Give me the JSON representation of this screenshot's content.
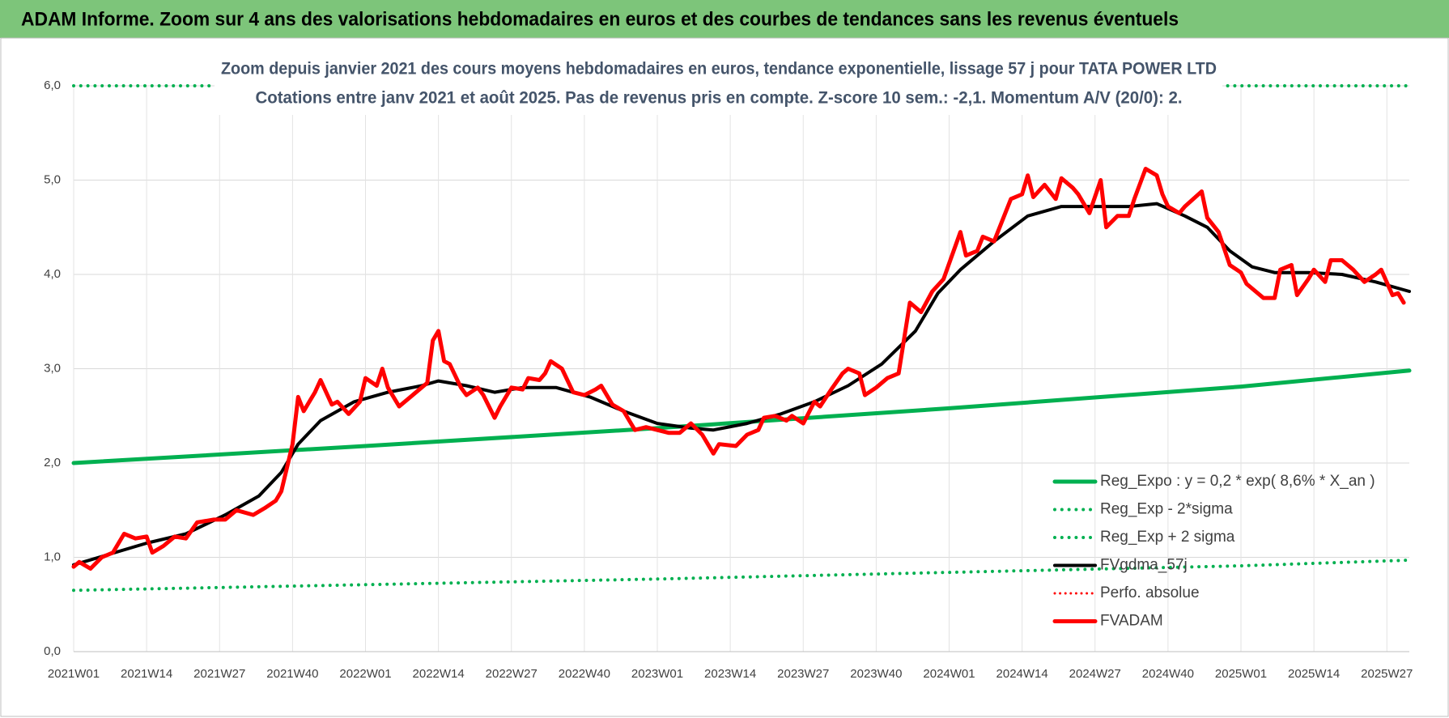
{
  "chart_data": {
    "type": "line",
    "title": "ADAM Informe. Zoom sur 4 ans des valorisations hebdomadaires en euros et des courbes de tendances sans les revenus éventuels",
    "subtitle": [
      "Zoom depuis janvier 2021 des cours moyens hebdomadaires en euros, tendance exponentielle, lissage 57 j pour TATA POWER LTD",
      "Cotations entre janv 2021 et août 2025.  Pas de revenus pris en compte. Z-score 10 sem.: -2,1. Momentum A/V (20/0): 2."
    ],
    "xlim": [
      0,
      238
    ],
    "xticks": [
      {
        "value": 0,
        "label": "2021W01"
      },
      {
        "value": 13,
        "label": "2021W14"
      },
      {
        "value": 26,
        "label": "2021W27"
      },
      {
        "value": 39,
        "label": "2021W40"
      },
      {
        "value": 52,
        "label": "2022W01"
      },
      {
        "value": 65,
        "label": "2022W14"
      },
      {
        "value": 78,
        "label": "2022W27"
      },
      {
        "value": 91,
        "label": "2022W40"
      },
      {
        "value": 104,
        "label": "2023W01"
      },
      {
        "value": 117,
        "label": "2023W14"
      },
      {
        "value": 130,
        "label": "2023W27"
      },
      {
        "value": 143,
        "label": "2023W40"
      },
      {
        "value": 156,
        "label": "2024W01"
      },
      {
        "value": 169,
        "label": "2024W14"
      },
      {
        "value": 182,
        "label": "2024W27"
      },
      {
        "value": 195,
        "label": "2024W40"
      },
      {
        "value": 208,
        "label": "2025W01"
      },
      {
        "value": 221,
        "label": "2025W14"
      },
      {
        "value": 234,
        "label": "2025W27"
      }
    ],
    "ylim": [
      0,
      6
    ],
    "yticks": [
      {
        "value": 0,
        "label": "0,0"
      },
      {
        "value": 1,
        "label": "1,0"
      },
      {
        "value": 2,
        "label": "2,0"
      },
      {
        "value": 3,
        "label": "3,0"
      },
      {
        "value": 4,
        "label": "4,0"
      },
      {
        "value": 5,
        "label": "5,0"
      },
      {
        "value": 6,
        "label": "6,0"
      }
    ],
    "grid": true,
    "legend": "lower right",
    "series": [
      {
        "name": "Reg_Expo : y = 0,2 * exp( 8,6% *  X_an )",
        "color": "#00b050",
        "style": "solid",
        "width": 5,
        "x": [
          0,
          52,
          104,
          156,
          208,
          238
        ],
        "values": [
          2.0,
          2.18,
          2.37,
          2.58,
          2.81,
          2.98
        ]
      },
      {
        "name": "Reg_Exp - 2*sigma",
        "color": "#00b050",
        "style": "dotted",
        "width": 4,
        "x": [
          0,
          52,
          104,
          156,
          208,
          238
        ],
        "values": [
          0.65,
          0.71,
          0.77,
          0.84,
          0.91,
          0.97
        ]
      },
      {
        "name": "Reg_Exp + 2 sigma",
        "color": "#00b050",
        "style": "dotted",
        "width": 4,
        "x": [
          0,
          238
        ],
        "values": [
          6.0,
          6.0
        ]
      },
      {
        "name": "FVgdma_57j",
        "color": "#000000",
        "style": "solid",
        "width": 4,
        "x": [
          0,
          13,
          20,
          27,
          33,
          37,
          40,
          44,
          50,
          56,
          62,
          65,
          70,
          75,
          80,
          86,
          92,
          98,
          104,
          110,
          114,
          120,
          126,
          132,
          138,
          144,
          150,
          154,
          158,
          164,
          170,
          176,
          182,
          188,
          193,
          198,
          202,
          206,
          210,
          214,
          220,
          226,
          232,
          238
        ],
        "values": [
          0.92,
          1.15,
          1.25,
          1.45,
          1.65,
          1.9,
          2.2,
          2.45,
          2.65,
          2.75,
          2.82,
          2.87,
          2.82,
          2.75,
          2.8,
          2.8,
          2.7,
          2.55,
          2.42,
          2.37,
          2.35,
          2.42,
          2.52,
          2.65,
          2.82,
          3.05,
          3.4,
          3.8,
          4.05,
          4.35,
          4.62,
          4.72,
          4.72,
          4.72,
          4.75,
          4.62,
          4.5,
          4.25,
          4.08,
          4.02,
          4.02,
          4.0,
          3.92,
          3.82
        ]
      },
      {
        "name": "Perfo. absolue",
        "color": "#ff0000",
        "style": "dotted",
        "width": 3,
        "x": [],
        "values": []
      },
      {
        "name": "FVADAM",
        "color": "#ff0000",
        "style": "solid",
        "width": 5,
        "x": [
          0,
          1,
          3,
          5,
          7,
          9,
          11,
          13,
          14,
          16,
          18,
          20,
          22,
          25,
          27,
          29,
          32,
          34,
          36,
          37,
          39,
          40,
          41,
          43,
          44,
          46,
          47,
          49,
          51,
          52,
          54,
          55,
          56,
          58,
          60,
          62,
          63,
          64,
          65,
          66,
          67,
          69,
          70,
          72,
          73,
          75,
          76,
          78,
          80,
          81,
          83,
          84,
          85,
          87,
          89,
          91,
          93,
          94,
          96,
          98,
          100,
          102,
          104,
          106,
          108,
          110,
          112,
          114,
          115,
          118,
          120,
          122,
          123,
          125,
          127,
          128,
          130,
          132,
          133,
          135,
          137,
          138,
          140,
          141,
          143,
          145,
          147,
          149,
          151,
          153,
          155,
          158,
          159,
          161,
          162,
          164,
          165,
          167,
          169,
          170,
          171,
          173,
          175,
          176,
          178,
          179,
          181,
          183,
          184,
          186,
          188,
          189,
          191,
          193,
          194,
          195,
          197,
          198,
          201,
          202,
          204,
          206,
          208,
          209,
          210,
          212,
          214,
          215,
          217,
          218,
          220,
          221,
          223,
          224,
          226,
          228,
          230,
          232,
          233,
          235,
          236,
          237
        ],
        "values": [
          0.9,
          0.95,
          0.88,
          1.0,
          1.05,
          1.25,
          1.2,
          1.22,
          1.05,
          1.12,
          1.22,
          1.2,
          1.37,
          1.4,
          1.4,
          1.5,
          1.45,
          1.52,
          1.6,
          1.7,
          2.2,
          2.7,
          2.55,
          2.75,
          2.88,
          2.62,
          2.65,
          2.52,
          2.65,
          2.9,
          2.82,
          3.0,
          2.8,
          2.6,
          2.7,
          2.8,
          2.85,
          3.3,
          3.4,
          3.08,
          3.05,
          2.8,
          2.72,
          2.8,
          2.72,
          2.48,
          2.6,
          2.8,
          2.78,
          2.9,
          2.88,
          2.95,
          3.08,
          3.0,
          2.75,
          2.72,
          2.78,
          2.82,
          2.62,
          2.55,
          2.35,
          2.38,
          2.35,
          2.32,
          2.32,
          2.42,
          2.3,
          2.1,
          2.2,
          2.18,
          2.3,
          2.35,
          2.48,
          2.5,
          2.45,
          2.5,
          2.42,
          2.65,
          2.6,
          2.78,
          2.95,
          3.0,
          2.95,
          2.72,
          2.8,
          2.9,
          2.95,
          3.7,
          3.6,
          3.82,
          3.95,
          4.45,
          4.2,
          4.25,
          4.4,
          4.35,
          4.5,
          4.8,
          4.85,
          5.05,
          4.82,
          4.95,
          4.8,
          5.02,
          4.92,
          4.85,
          4.65,
          5.0,
          4.5,
          4.62,
          4.62,
          4.8,
          5.12,
          5.05,
          4.85,
          4.72,
          4.65,
          4.72,
          4.88,
          4.6,
          4.45,
          4.1,
          4.02,
          3.9,
          3.85,
          3.75,
          3.75,
          4.05,
          4.1,
          3.78,
          3.95,
          4.05,
          3.92,
          4.15,
          4.15,
          4.05,
          3.92,
          4.0,
          4.05,
          3.78,
          3.8,
          3.7
        ]
      }
    ]
  }
}
